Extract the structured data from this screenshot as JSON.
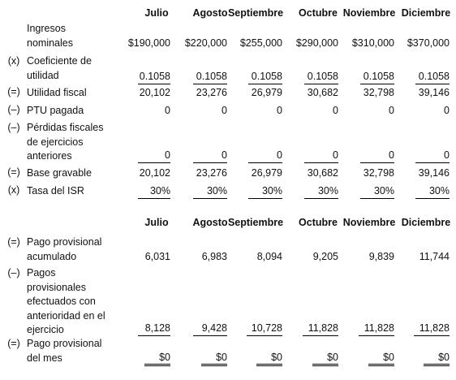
{
  "months": [
    "Julio",
    "Agosto",
    "Septiembre",
    "Octubre",
    "Noviembre",
    "Diciembre"
  ],
  "table1": {
    "rows": [
      {
        "op": "",
        "label": "Ingresos nominales",
        "values": [
          "$190,000",
          "$220,000",
          "$255,000",
          "$290,000",
          "$310,000",
          "$370,000"
        ]
      },
      {
        "op": "(x)",
        "label": "Coeficiente de utilidad",
        "values": [
          "0.1058",
          "0.1058",
          "0.1058",
          "0.1058",
          "0.1058",
          "0.1058"
        ]
      },
      {
        "op": "(=)",
        "label": "Utilidad fiscal",
        "values": [
          "20,102",
          "23,276",
          "26,979",
          "30,682",
          "32,798",
          "39,146"
        ]
      },
      {
        "op": "(–)",
        "label": "PTU pagada",
        "values": [
          "0",
          "0",
          "0",
          "0",
          "0",
          "0"
        ]
      },
      {
        "op": "(–)",
        "label": "Pérdidas fiscales de ejercicios anteriores",
        "values": [
          "0",
          "0",
          "0",
          "0",
          "0",
          "0"
        ]
      },
      {
        "op": "(=)",
        "label": "Base gravable",
        "values": [
          "20,102",
          "23,276",
          "26,979",
          "30,682",
          "32,798",
          "39,146"
        ]
      },
      {
        "op": "(x)",
        "label": "Tasa del ISR",
        "values": [
          "30%",
          "30%",
          "30%",
          "30%",
          "30%",
          "30%"
        ]
      }
    ]
  },
  "table2": {
    "rows": [
      {
        "op": "(=)",
        "label": "Pago provisional acumulado",
        "values": [
          "6,031",
          "6,983",
          "8,094",
          "9,205",
          "9,839",
          "11,744"
        ]
      },
      {
        "op": "(–)",
        "label": "Pagos provisionales efectuados con anterioridad en el ejercicio",
        "values": [
          "8,128",
          "9,428",
          "10,728",
          "11,828",
          "11,828",
          "11,828"
        ]
      },
      {
        "op": "(=)",
        "label": "Pago provisional del mes",
        "values": [
          "$0",
          "$0",
          "$0",
          "$0",
          "$0",
          "$0"
        ]
      }
    ]
  }
}
